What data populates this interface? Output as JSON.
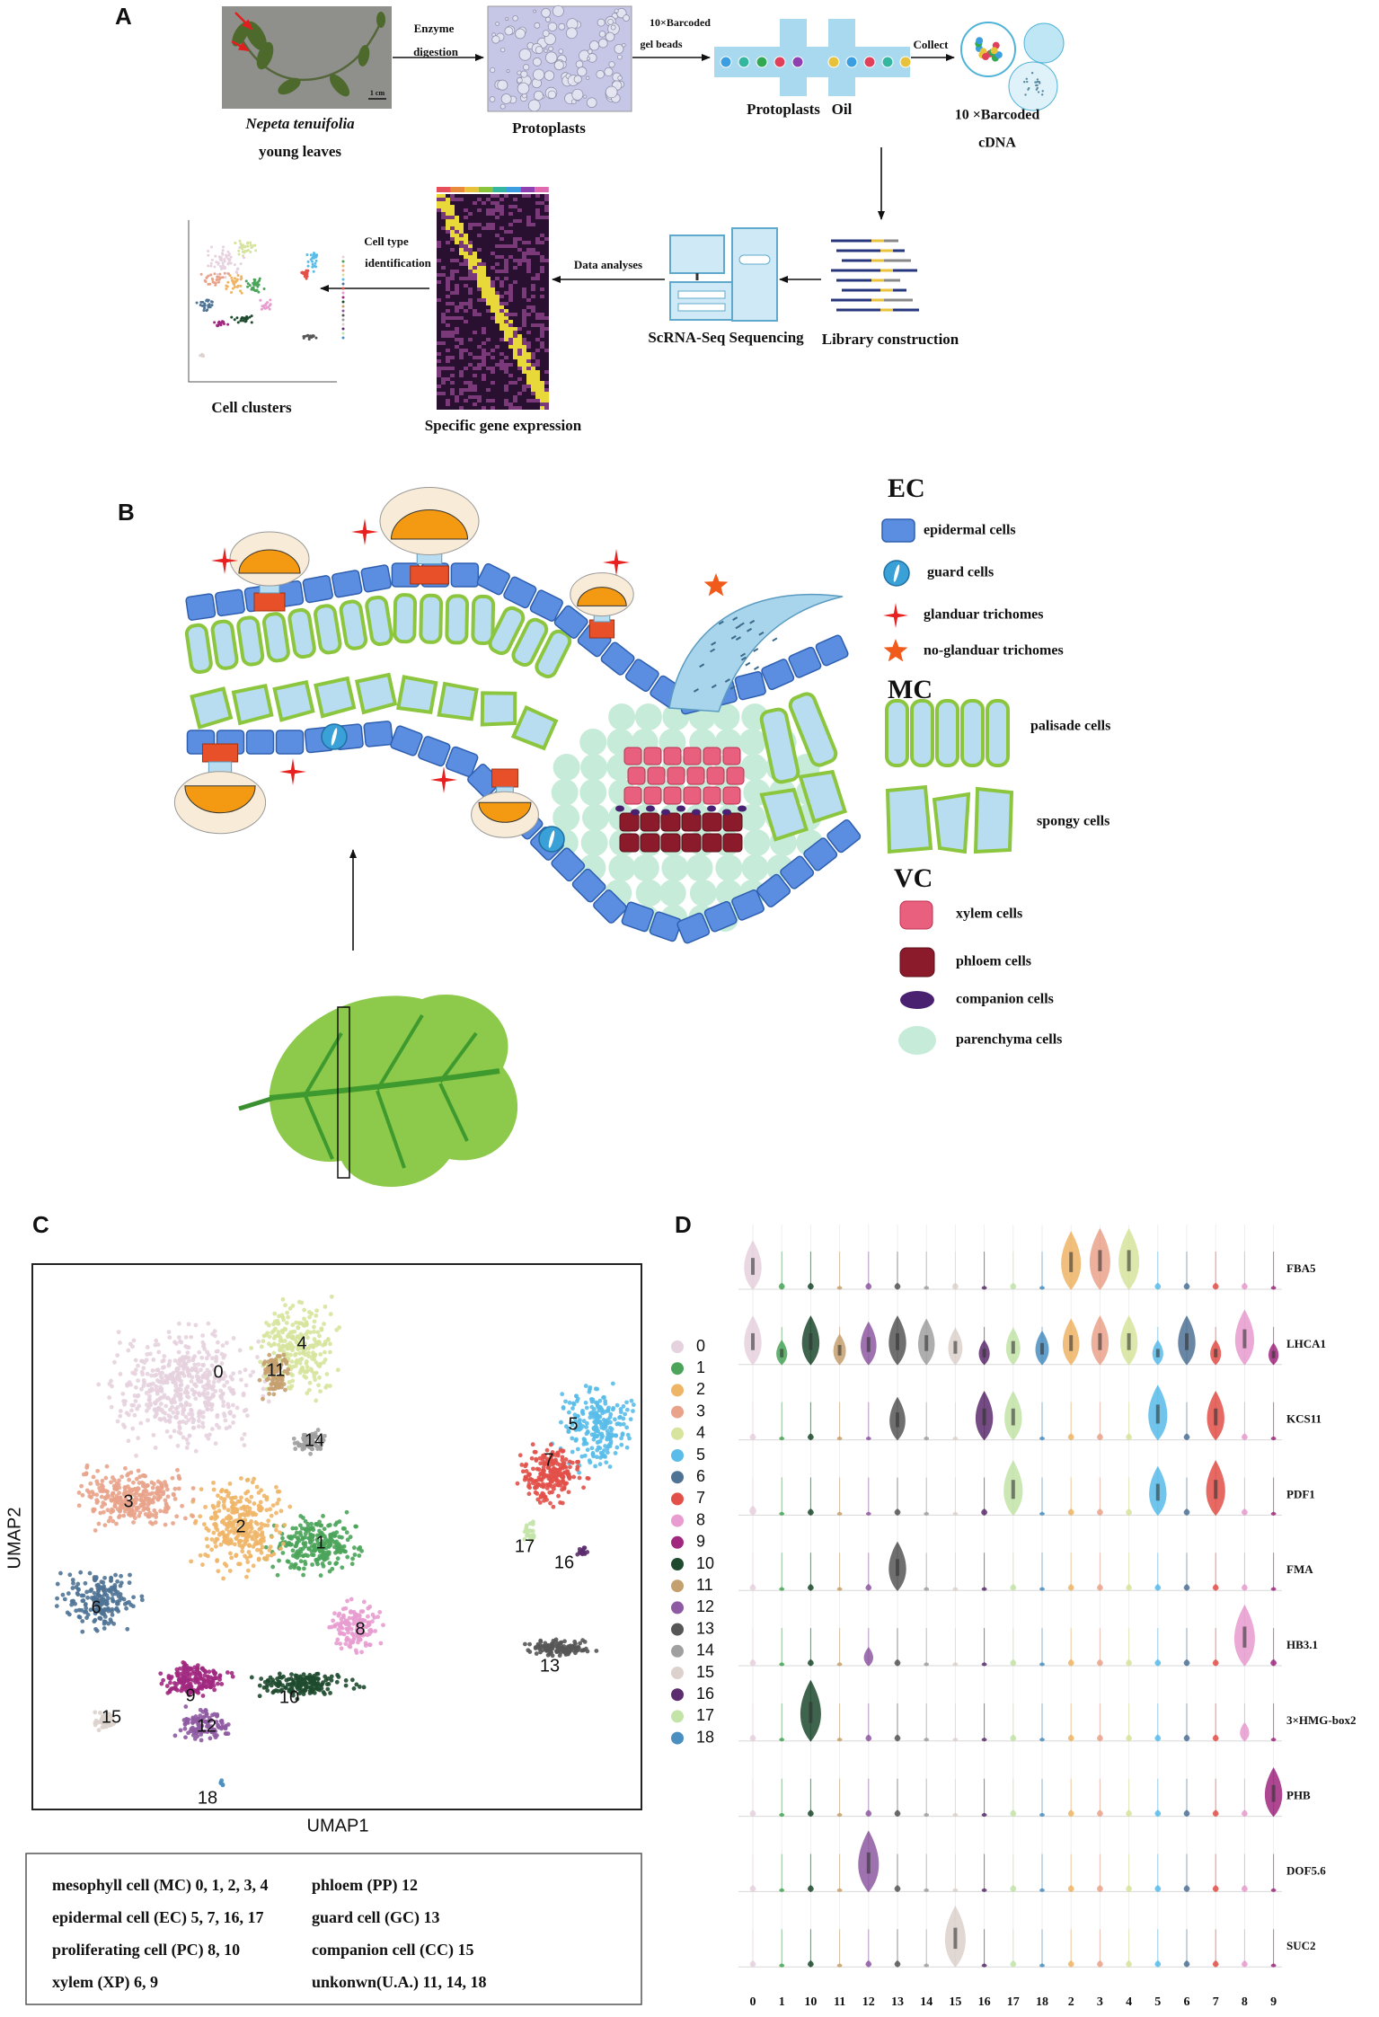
{
  "panel_a": {
    "label": "A",
    "species": "Nepeta tenuifolia",
    "species_sub": "young leaves",
    "scale": "1 cm",
    "step1": [
      "Enzyme",
      "digestion"
    ],
    "protoplasts": "Protoplasts",
    "step2": [
      "10×Barcoded",
      "gel beads"
    ],
    "chip": [
      "Protoplasts",
      "Oil"
    ],
    "step3": "Collect",
    "cdna": [
      "10 ×Barcoded",
      "cDNA"
    ],
    "library": "Library construction",
    "sequencing": "ScRNA-Seq Sequencing",
    "step4": "Data analyses",
    "expression": "Specific gene expression",
    "step5": [
      "Cell type",
      "identification"
    ],
    "clusters": "Cell clusters"
  },
  "panel_b": {
    "label": "B",
    "legend": [
      {
        "group": "EC",
        "items": [
          "epidermal cells",
          "guard cells",
          "glanduar trichomes",
          "no-glanduar trichomes"
        ]
      },
      {
        "group": "MC",
        "items": [
          "palisade cells",
          "spongy cells"
        ]
      },
      {
        "group": "VC",
        "items": [
          "xylem cells",
          "phloem cells",
          "companion cells",
          "parenchyma cells"
        ]
      }
    ]
  },
  "panel_c": {
    "label": "C",
    "xlabel": "UMAP1",
    "ylabel": "UMAP2",
    "clusters": [
      {
        "name": "0",
        "color": "#e6d1de"
      },
      {
        "name": "1",
        "color": "#4ba45a"
      },
      {
        "name": "2",
        "color": "#efb567"
      },
      {
        "name": "3",
        "color": "#e9a38b"
      },
      {
        "name": "4",
        "color": "#d6e49d"
      },
      {
        "name": "5",
        "color": "#59bce9"
      },
      {
        "name": "6",
        "color": "#4f7395"
      },
      {
        "name": "7",
        "color": "#e25049"
      },
      {
        "name": "8",
        "color": "#e89ccf"
      },
      {
        "name": "9",
        "color": "#a1287f"
      },
      {
        "name": "10",
        "color": "#1e4a2e"
      },
      {
        "name": "11",
        "color": "#c5a06f"
      },
      {
        "name": "12",
        "color": "#8e5aa1"
      },
      {
        "name": "13",
        "color": "#565656"
      },
      {
        "name": "14",
        "color": "#a0a0a0"
      },
      {
        "name": "15",
        "color": "#dcd1cc"
      },
      {
        "name": "16",
        "color": "#5c2d6e"
      },
      {
        "name": "17",
        "color": "#c3e3a8"
      },
      {
        "name": "18",
        "color": "#4a8fc0"
      }
    ]
  },
  "annotations": {
    "rows": [
      [
        "mesophyll cell (MC) 0, 1, 2, 3, 4",
        "phloem (PP) 12"
      ],
      [
        "epidermal cell (EC) 5, 7, 16, 17",
        "guard cell (GC) 13"
      ],
      [
        "proliferating cell (PC) 8, 10",
        "companion cell (CC) 15"
      ],
      [
        "xylem (XP) 6, 9",
        "unkonwn(U.A.) 11, 14, 18"
      ]
    ]
  },
  "chart_data": {
    "type": "violin",
    "label": "D",
    "categories": [
      "0",
      "1",
      "10",
      "11",
      "12",
      "13",
      "14",
      "15",
      "16",
      "17",
      "18",
      "2",
      "3",
      "4",
      "5",
      "6",
      "7",
      "8",
      "9"
    ],
    "series": [
      {
        "name": "FBA5",
        "values": [
          0.8,
          0.1,
          0.1,
          0.05,
          0.1,
          0.1,
          0.05,
          0.1,
          0.05,
          0.1,
          0.05,
          0.95,
          1,
          1,
          0.1,
          0.1,
          0.1,
          0.1,
          0.05
        ]
      },
      {
        "name": "LHCA1",
        "values": [
          0.8,
          0.4,
          0.8,
          0.5,
          0.7,
          0.8,
          0.75,
          0.6,
          0.4,
          0.6,
          0.55,
          0.75,
          0.8,
          0.8,
          0.4,
          0.8,
          0.4,
          0.9,
          0.35
        ]
      },
      {
        "name": "KCS11",
        "values": [
          0.1,
          0.05,
          0.1,
          0.05,
          0.05,
          0.7,
          0.05,
          0.05,
          0.8,
          0.8,
          0.05,
          0.1,
          0.1,
          0.1,
          0.9,
          0.1,
          0.8,
          0.1,
          0.05
        ]
      },
      {
        "name": "PDF1",
        "values": [
          0.15,
          0.05,
          0.1,
          0.05,
          0.05,
          0.1,
          0.05,
          0.05,
          0.1,
          0.9,
          0.05,
          0.1,
          0.1,
          0.1,
          0.8,
          0.1,
          0.9,
          0.1,
          0.05
        ]
      },
      {
        "name": "FMA",
        "values": [
          0.1,
          0.05,
          0.1,
          0.05,
          0.1,
          0.8,
          0.05,
          0.05,
          0.05,
          0.1,
          0.05,
          0.1,
          0.1,
          0.1,
          0.1,
          0.1,
          0.1,
          0.1,
          0.05
        ]
      },
      {
        "name": "HB3.1",
        "values": [
          0.1,
          0.05,
          0.1,
          0.05,
          0.3,
          0.1,
          0.05,
          0.05,
          0.05,
          0.1,
          0.05,
          0.1,
          0.1,
          0.1,
          0.1,
          0.1,
          0.1,
          1,
          0.1
        ]
      },
      {
        "name": "3×HMG-box2",
        "values": [
          0.1,
          0.05,
          1,
          0.05,
          0.1,
          0.1,
          0.05,
          0.05,
          0.05,
          0.1,
          0.05,
          0.1,
          0.1,
          0.1,
          0.1,
          0.1,
          0.1,
          0.3,
          0.05
        ]
      },
      {
        "name": "PHB",
        "values": [
          0.1,
          0.05,
          0.1,
          0.05,
          0.1,
          0.1,
          0.05,
          0.05,
          0.05,
          0.1,
          0.05,
          0.1,
          0.1,
          0.1,
          0.1,
          0.1,
          0.1,
          0.1,
          0.8
        ]
      },
      {
        "name": "DOF5.6",
        "values": [
          0.1,
          0.05,
          0.1,
          0.05,
          1,
          0.1,
          0.05,
          0.05,
          0.05,
          0.1,
          0.05,
          0.1,
          0.1,
          0.1,
          0.1,
          0.1,
          0.1,
          0.1,
          0.05
        ]
      },
      {
        "name": "SUC2",
        "values": [
          0.1,
          0.05,
          0.1,
          0.05,
          0.1,
          0.1,
          0.05,
          1,
          0.05,
          0.1,
          0.05,
          0.1,
          0.1,
          0.1,
          0.1,
          0.1,
          0.1,
          0.1,
          0.05
        ]
      }
    ]
  }
}
